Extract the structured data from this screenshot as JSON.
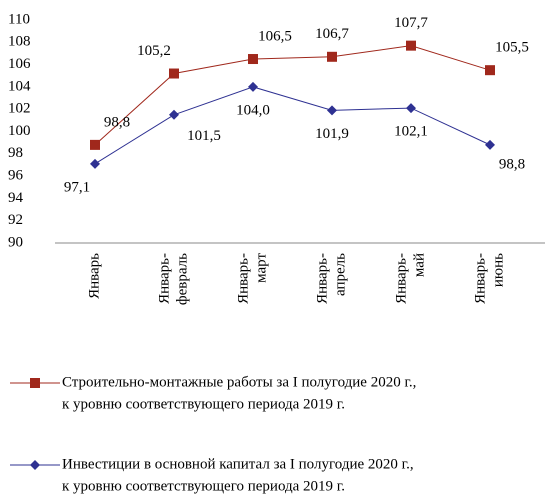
{
  "chart_data": {
    "type": "line",
    "categories": [
      [
        "Январь"
      ],
      [
        "Январь-",
        "февраль"
      ],
      [
        "Январь-",
        "март"
      ],
      [
        "Январь-",
        "апрель"
      ],
      [
        "Январь-",
        "май"
      ],
      [
        "Январь-",
        "июнь"
      ]
    ],
    "series": [
      {
        "name": [
          "Строительно-монтажные работы за I полугодие 2020 г.,",
          "к уровню соответствующего периода 2019 г."
        ],
        "color": "#a0281c",
        "marker": "square",
        "values": [
          98.8,
          105.2,
          106.5,
          106.7,
          107.7,
          105.5
        ],
        "value_labels": [
          "98,8",
          "105,2",
          "106,5",
          "106,7",
          "107,7",
          "105,5"
        ]
      },
      {
        "name": [
          "Инвестиции в основной капитал за I полугодие 2020 г.,",
          "к уровню соответствующего периода 2019 г."
        ],
        "color": "#2e3192",
        "marker": "diamond",
        "values": [
          97.1,
          101.5,
          104.0,
          101.9,
          102.1,
          98.8
        ],
        "value_labels": [
          "97,1",
          "101,5",
          "104,0",
          "101,9",
          "102,1",
          "98,8"
        ]
      }
    ],
    "ylim": [
      90,
      110
    ],
    "yticks": [
      90,
      92,
      94,
      96,
      98,
      100,
      102,
      104,
      106,
      108,
      110
    ],
    "grid": false
  }
}
